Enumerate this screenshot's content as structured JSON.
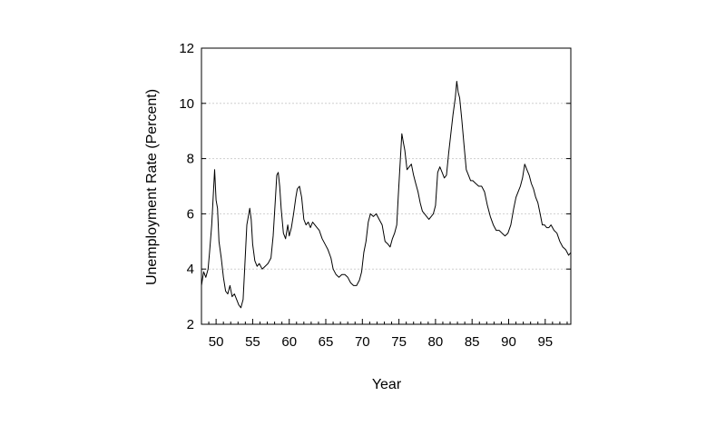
{
  "chart_data": {
    "type": "line",
    "title": "",
    "xlabel": "Year",
    "ylabel": "Unemployment Rate (Percent)",
    "xlim": [
      1948,
      1998.5
    ],
    "ylim": [
      2,
      12
    ],
    "y_ticks": [
      2,
      4,
      6,
      8,
      10,
      12
    ],
    "x_ticks": [
      1950,
      1955,
      1960,
      1965,
      1970,
      1975,
      1980,
      1985,
      1990,
      1995
    ],
    "x_tick_labels": [
      "50",
      "55",
      "60",
      "65",
      "70",
      "75",
      "80",
      "85",
      "90",
      "95"
    ],
    "grid": "horizontal dotted",
    "colors": {
      "line": "#000000",
      "grid": "#cfcfcf"
    },
    "series": [
      {
        "x": [
          1948.0,
          1948.3,
          1948.6,
          1948.9,
          1949.1,
          1949.4,
          1949.6,
          1949.8,
          1950.0,
          1950.2,
          1950.4,
          1950.7,
          1951.0,
          1951.3,
          1951.6,
          1951.9,
          1952.2,
          1952.5,
          1952.8,
          1953.1,
          1953.4,
          1953.7,
          1953.9,
          1954.2,
          1954.4,
          1954.6,
          1954.8,
          1955.0,
          1955.3,
          1955.6,
          1955.9,
          1956.3,
          1956.7,
          1957.1,
          1957.5,
          1957.8,
          1958.1,
          1958.3,
          1958.5,
          1958.7,
          1958.9,
          1959.2,
          1959.5,
          1959.8,
          1960.0,
          1960.3,
          1960.6,
          1960.9,
          1961.1,
          1961.4,
          1961.7,
          1962.0,
          1962.3,
          1962.6,
          1962.9,
          1963.2,
          1963.5,
          1963.8,
          1964.1,
          1964.5,
          1964.9,
          1965.3,
          1965.7,
          1966.0,
          1966.4,
          1966.8,
          1967.2,
          1967.6,
          1968.0,
          1968.4,
          1968.8,
          1969.2,
          1969.6,
          1969.9,
          1970.2,
          1970.5,
          1970.8,
          1971.1,
          1971.5,
          1971.9,
          1972.3,
          1972.7,
          1973.1,
          1973.5,
          1973.8,
          1974.1,
          1974.4,
          1974.7,
          1974.9,
          1975.2,
          1975.4,
          1975.6,
          1975.8,
          1976.1,
          1976.4,
          1976.7,
          1977.0,
          1977.3,
          1977.6,
          1977.9,
          1978.2,
          1978.5,
          1978.8,
          1979.1,
          1979.4,
          1979.7,
          1980.0,
          1980.3,
          1980.6,
          1980.9,
          1981.2,
          1981.5,
          1981.8,
          1982.1,
          1982.4,
          1982.7,
          1982.9,
          1983.1,
          1983.3,
          1983.6,
          1983.9,
          1984.2,
          1984.5,
          1984.8,
          1985.1,
          1985.5,
          1985.9,
          1986.3,
          1986.7,
          1987.1,
          1987.5,
          1987.9,
          1988.3,
          1988.7,
          1989.1,
          1989.5,
          1989.9,
          1990.3,
          1990.7,
          1991.0,
          1991.3,
          1991.6,
          1991.9,
          1992.2,
          1992.5,
          1992.8,
          1993.1,
          1993.4,
          1993.7,
          1994.0,
          1994.3,
          1994.6,
          1994.9,
          1995.2,
          1995.5,
          1995.8,
          1996.2,
          1996.6,
          1997.0,
          1997.4,
          1997.8,
          1998.2,
          1998.5
        ],
        "y": [
          3.4,
          3.9,
          3.7,
          4.0,
          4.6,
          5.6,
          6.6,
          7.6,
          6.5,
          6.2,
          5.0,
          4.4,
          3.7,
          3.2,
          3.1,
          3.4,
          3.0,
          3.1,
          2.9,
          2.7,
          2.6,
          2.9,
          4.0,
          5.6,
          5.9,
          6.2,
          5.8,
          4.9,
          4.3,
          4.1,
          4.2,
          4.0,
          4.1,
          4.2,
          4.4,
          5.2,
          6.5,
          7.4,
          7.5,
          7.0,
          6.2,
          5.3,
          5.1,
          5.6,
          5.2,
          5.5,
          6.0,
          6.6,
          6.9,
          7.0,
          6.6,
          5.8,
          5.6,
          5.7,
          5.5,
          5.7,
          5.6,
          5.5,
          5.4,
          5.1,
          4.9,
          4.7,
          4.4,
          4.0,
          3.8,
          3.7,
          3.8,
          3.8,
          3.7,
          3.5,
          3.4,
          3.4,
          3.6,
          3.9,
          4.6,
          5.0,
          5.7,
          6.0,
          5.9,
          6.0,
          5.8,
          5.6,
          5.0,
          4.9,
          4.8,
          5.1,
          5.3,
          5.6,
          6.6,
          8.0,
          8.9,
          8.6,
          8.3,
          7.6,
          7.7,
          7.8,
          7.4,
          7.1,
          6.8,
          6.4,
          6.1,
          6.0,
          5.9,
          5.8,
          5.9,
          6.0,
          6.3,
          7.5,
          7.7,
          7.5,
          7.3,
          7.4,
          8.2,
          8.9,
          9.6,
          10.2,
          10.8,
          10.4,
          10.2,
          9.4,
          8.5,
          7.6,
          7.4,
          7.2,
          7.2,
          7.1,
          7.0,
          7.0,
          6.8,
          6.3,
          5.9,
          5.6,
          5.4,
          5.4,
          5.3,
          5.2,
          5.3,
          5.6,
          6.2,
          6.6,
          6.8,
          7.0,
          7.3,
          7.8,
          7.6,
          7.4,
          7.1,
          6.9,
          6.6,
          6.4,
          6.0,
          5.6,
          5.6,
          5.5,
          5.5,
          5.6,
          5.4,
          5.3,
          5.0,
          4.8,
          4.7,
          4.5,
          4.6
        ]
      }
    ]
  }
}
